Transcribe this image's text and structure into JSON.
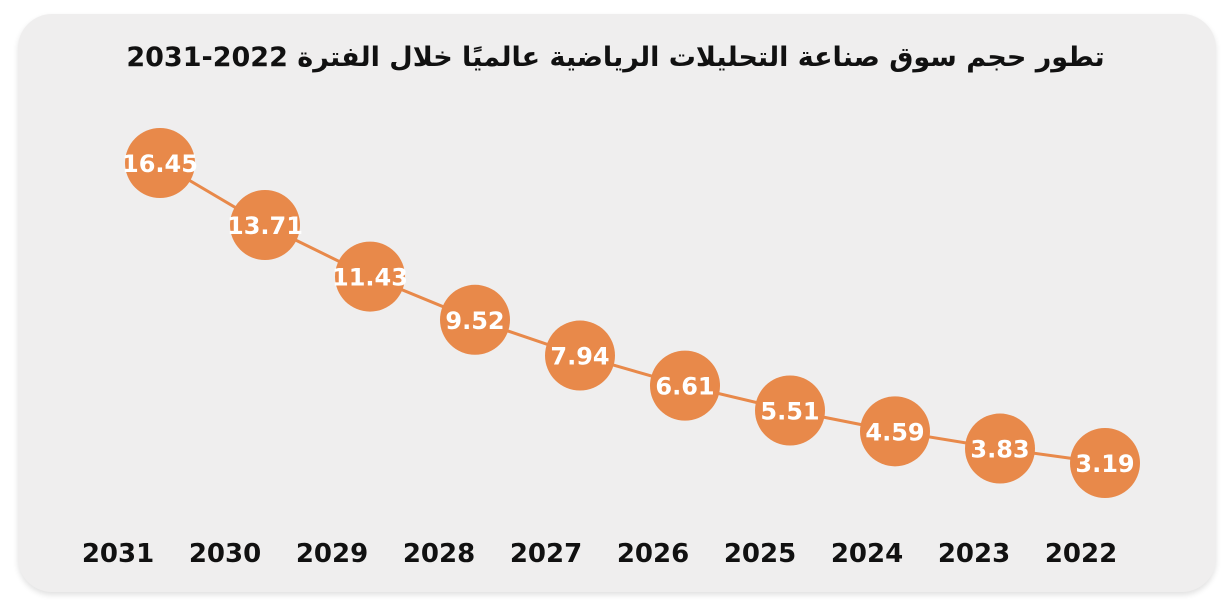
{
  "chart_data": {
    "type": "line",
    "title": "تطور حجم سوق صناعة التحليلات الرياضية عالميًا خلال الفترة 2022-2031",
    "x": [
      "2031",
      "2030",
      "2029",
      "2028",
      "2027",
      "2026",
      "2025",
      "2024",
      "2023",
      "2022"
    ],
    "series": [
      {
        "values": [
          16.45,
          13.71,
          11.43,
          9.52,
          7.94,
          6.61,
          5.51,
          4.59,
          3.83,
          3.19
        ]
      }
    ],
    "value_labels": [
      "16.45",
      "13.71",
      "11.43",
      "9.52",
      "7.94",
      "6.61",
      "5.51",
      "4.59",
      "3.83",
      "3.19"
    ],
    "xlabel": "",
    "ylabel": "",
    "ylim": [
      0,
      18
    ],
    "grid": false,
    "colors": {
      "marker": "#e8894a",
      "line": "#e8894a",
      "card_background": "#efeeee",
      "label_text": "#ffffff",
      "axis_text": "#111111"
    }
  }
}
